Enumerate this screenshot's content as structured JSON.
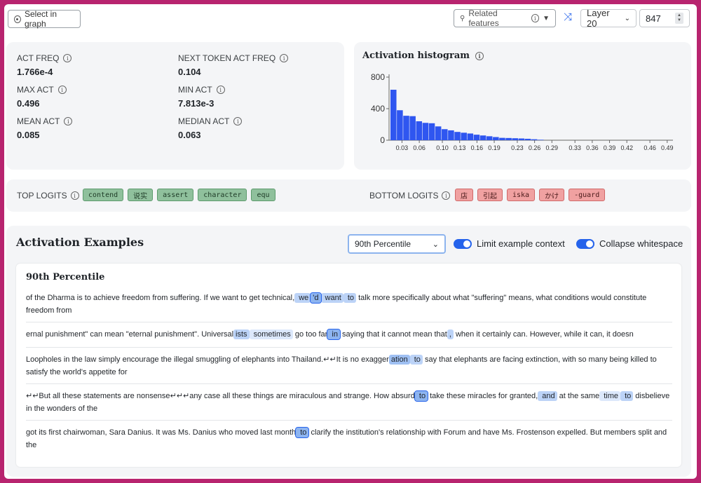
{
  "topbar": {
    "select_in_graph": "Select in graph",
    "related_features": "Related features",
    "layer": "Layer 20",
    "feature_index": "847"
  },
  "stats": [
    {
      "label": "ACT FREQ",
      "value": "1.766e-4"
    },
    {
      "label": "NEXT TOKEN ACT FREQ",
      "value": "0.104"
    },
    {
      "label": "MAX ACT",
      "value": "0.496"
    },
    {
      "label": "MIN ACT",
      "value": "7.813e-3"
    },
    {
      "label": "MEAN ACT",
      "value": "0.085"
    },
    {
      "label": "MEDIAN ACT",
      "value": "0.063"
    }
  ],
  "histogram": {
    "title": "Activation histogram",
    "y_ticks": [
      "800",
      "400",
      "0"
    ],
    "x_ticks": [
      "0.03",
      "0.06",
      "0.10",
      "0.13",
      "0.16",
      "0.19",
      "0.23",
      "0.26",
      "0.29",
      "0.33",
      "0.36",
      "0.39",
      "0.42",
      "0.46",
      "0.49"
    ]
  },
  "chart_data": {
    "type": "bar",
    "title": "Activation histogram",
    "ylim": [
      0,
      800
    ],
    "xlim": [
      0.01,
      0.5
    ],
    "bin_width": 0.0111,
    "bin_start": 0.01,
    "values": [
      640,
      380,
      310,
      305,
      240,
      220,
      215,
      175,
      140,
      125,
      105,
      95,
      85,
      70,
      60,
      50,
      40,
      30,
      28,
      25,
      22,
      18,
      12,
      6
    ]
  },
  "logits": {
    "top_label": "TOP LOGITS",
    "bottom_label": "BOTTOM LOGITS",
    "top": [
      "contend",
      "说实",
      "assert",
      "character",
      "equ"
    ],
    "bottom": [
      "店",
      "引起",
      "iska",
      "かけ",
      "-guard"
    ]
  },
  "examples": {
    "title": "Activation Examples",
    "percentile": "90th Percentile",
    "toggle1": "Limit example context",
    "toggle2": "Collapse whitespace",
    "card_title": "90th Percentile",
    "rows": [
      [
        {
          "t": " of the Dharma is to achieve freedom from suffering. If we want to get technical,"
        },
        {
          "t": " we",
          "h": 2
        },
        {
          "t": "'d",
          "h": 4
        },
        {
          "t": " want",
          "h": 2
        },
        {
          "t": " to",
          "h": 2
        },
        {
          "t": " talk more specifically about what \"suffering\" means, what conditions would constitute freedom from"
        }
      ],
      [
        {
          "t": "ernal punishment\" can mean \"eternal punishment\". Universal"
        },
        {
          "t": "ists",
          "h": 2
        },
        {
          "t": " sometimes",
          "h": 1
        },
        {
          "t": " go too far"
        },
        {
          "t": " in",
          "h": 4
        },
        {
          "t": " saying that it cannot mean that"
        },
        {
          "t": ",",
          "h": 2
        },
        {
          "t": " when it certainly can. However, while it can, it doesn"
        }
      ],
      [
        {
          "t": " Loopholes in the law simply encourage the illegal smuggling of elephants into Thailand.↵↵It is no exagger"
        },
        {
          "t": "ation",
          "h": 3
        },
        {
          "t": " to",
          "h": 2
        },
        {
          "t": " say that elephants are facing extinction, with so many being killed to satisfy the world's appetite for"
        }
      ],
      [
        {
          "t": "↵↵But all these statements are nonsense↵↵↵any case all these things are miraculous and strange. How absurd"
        },
        {
          "t": " to",
          "h": 4
        },
        {
          "t": " take these miracles for granted,"
        },
        {
          "t": " and",
          "h": 2
        },
        {
          "t": " at the same"
        },
        {
          "t": " time",
          "h": 1
        },
        {
          "t": " to",
          "h": 2
        },
        {
          "t": " disbelieve in the wonders of the"
        }
      ],
      [
        {
          "t": " got its first chairwoman, Sara Danius. It was Ms. Danius who moved last month"
        },
        {
          "t": " to",
          "h": 4
        },
        {
          "t": " clarify the institution's relationship with Forum and have Ms. Frostenson expelled. But members split and the"
        }
      ]
    ]
  }
}
